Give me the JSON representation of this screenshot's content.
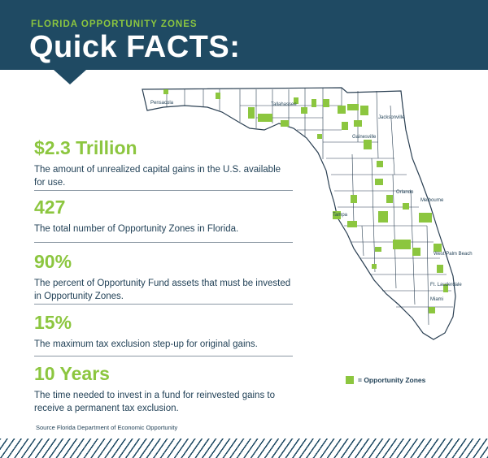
{
  "header": {
    "kicker": "FLORIDA OPPORTUNITY ZONES",
    "title": "Quick FACTS:"
  },
  "facts": [
    {
      "value": "$2.3 Trillion",
      "description": "The amount of unrealized capital gains in the U.S. available for use."
    },
    {
      "value": "427",
      "description": "The total number of Opportunity Zones in Florida."
    },
    {
      "value": "90%",
      "description": "The percent of Opportunity Fund assets that must be invested in Opportunity Zones."
    },
    {
      "value": "15%",
      "description": "The maximum tax exclusion step-up for original gains."
    },
    {
      "value": "10 Years",
      "description": "The time needed to invest in a fund for reinvested gains to receive a permanent tax exclusion."
    }
  ],
  "map": {
    "cities": [
      "Pensacola",
      "Tallahassee",
      "Jacksonville",
      "Gainesville",
      "Orlando",
      "Melbourne",
      "Tampa",
      "West Palm Beach",
      "Ft. Lauderdale",
      "Miami"
    ],
    "legend_label": "= Opportunity Zones"
  },
  "source": "Source Florida Department of Economic Opportunity",
  "colors": {
    "navy": "#1f4a63",
    "accent_green": "#8cc63f",
    "text_dark": "#1f3f55"
  }
}
